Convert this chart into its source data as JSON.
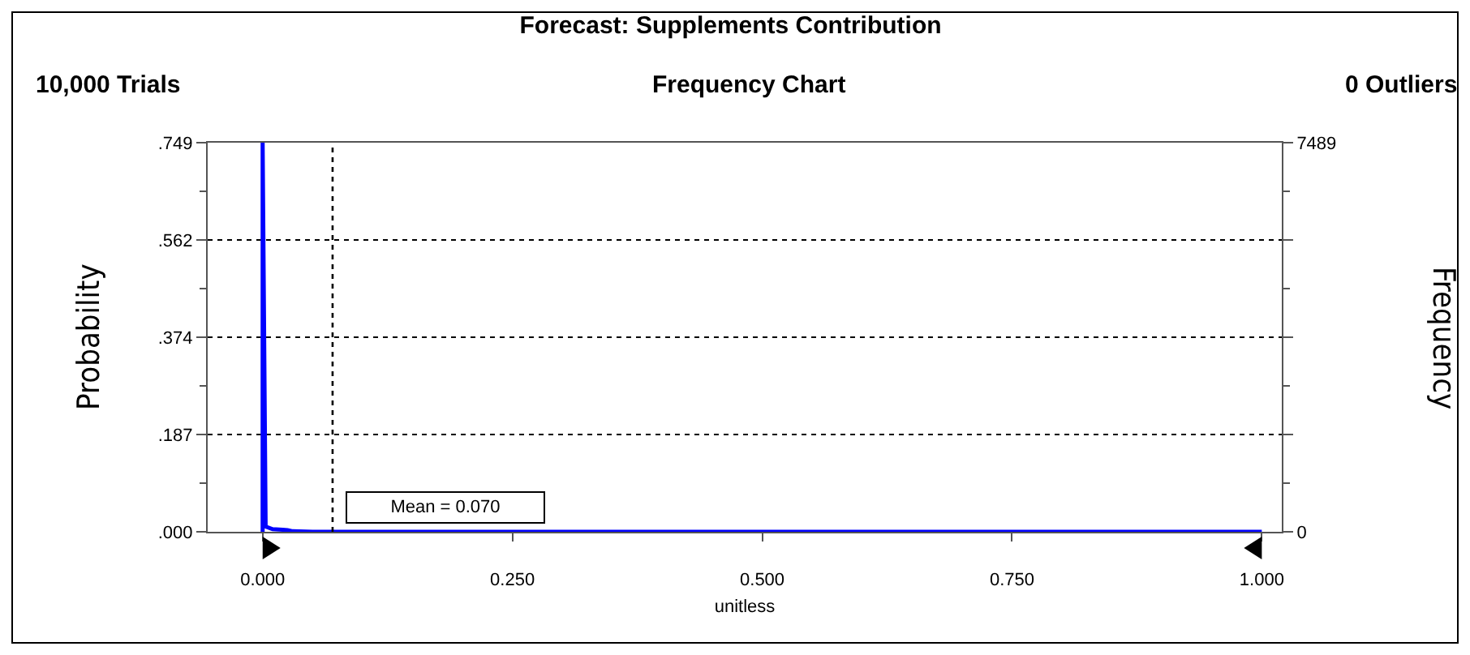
{
  "chart_data": {
    "type": "line",
    "title": "Forecast: Supplements Contribution",
    "subtitle": "Frequency Chart",
    "xlabel": "unitless",
    "ylabel": "Probability",
    "y2label": "Frequency",
    "annotations": [
      "10,000 Trials",
      "0 Outliers"
    ],
    "x": [
      0,
      0,
      0.003,
      0.01,
      0.02,
      0.025,
      0.03,
      0.05,
      0.1,
      0.2,
      0.3,
      0.4,
      0.5,
      0.6,
      0.7,
      0.8,
      0.9,
      1.0
    ],
    "series": [
      {
        "color": "#0000ff",
        "values": [
          0,
          0.749,
          0.01,
          0.005,
          0.004,
          0.003,
          0.001,
          0,
          0,
          0,
          0,
          0,
          0,
          0,
          0,
          0,
          0,
          0
        ]
      }
    ],
    "xlim": [
      -0.055,
      1.02
    ],
    "xticks": [
      {
        "value": 0,
        "label": "0.000"
      },
      {
        "value": 0.25,
        "label": "0.250"
      },
      {
        "value": 0.5,
        "label": "0.500"
      },
      {
        "value": 0.75,
        "label": "0.750"
      },
      {
        "value": 1,
        "label": "1.000"
      }
    ],
    "ylim": [
      0,
      0.749
    ],
    "yticks": [
      {
        "value": 0,
        "label": ".000"
      },
      {
        "value": 0.187,
        "label": ".187"
      },
      {
        "value": 0.374,
        "label": ".374"
      },
      {
        "value": 0.562,
        "label": ".562"
      },
      {
        "value": 0.749,
        "label": ".749"
      }
    ],
    "y2lim": [
      0,
      7489
    ],
    "y2ticks": [
      0,
      {
        "value": 1870,
        "label": null
      },
      {
        "value": 3740,
        "label": null
      },
      {
        "value": 5620,
        "label": null
      },
      7489
    ],
    "ref_lines": [
      {
        "axis": "x",
        "value": 0.07,
        "label": "Mean = 0.070",
        "color": "#000000",
        "line_style": "dotted"
      }
    ],
    "grid": "y",
    "line_style": "solid",
    "marker": "none"
  }
}
